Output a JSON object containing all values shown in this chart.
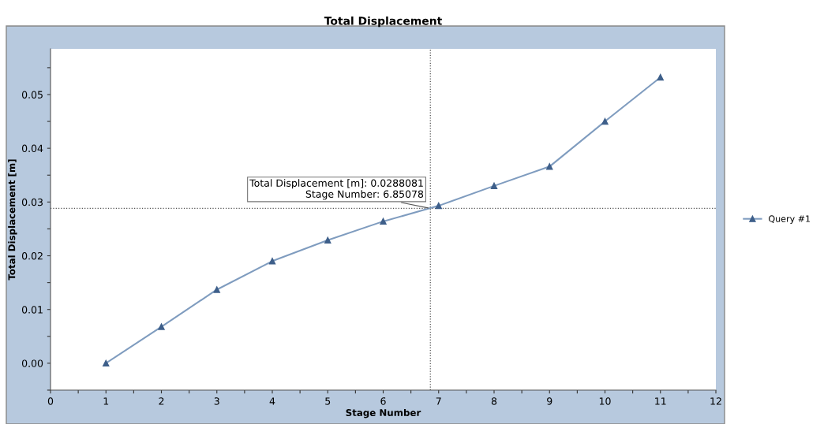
{
  "chart_data": {
    "type": "line",
    "title": "Total Displacement",
    "xlabel": "Stage Number",
    "ylabel": "Total Displacement [m]",
    "x": [
      1,
      2,
      3,
      4,
      5,
      6,
      7,
      8,
      9,
      10,
      11
    ],
    "series": [
      {
        "name": "Query #1",
        "color": "#7f9cbf",
        "values": [
          0.0,
          0.0068,
          0.0137,
          0.019,
          0.0229,
          0.0264,
          0.0293,
          0.033,
          0.0366,
          0.045,
          0.0532
        ]
      }
    ],
    "xlim": [
      0,
      12
    ],
    "xticks": [
      0,
      {
        "value": 0.5,
        "label": null
      },
      1,
      {
        "value": 1.5,
        "label": null
      },
      2,
      {
        "value": 2.5,
        "label": null
      },
      3,
      {
        "value": 3.5,
        "label": null
      },
      4,
      {
        "value": 4.5,
        "label": null
      },
      5,
      {
        "value": 5.5,
        "label": null
      },
      6,
      {
        "value": 6.5,
        "label": null
      },
      7,
      {
        "value": 7.5,
        "label": null
      },
      8,
      {
        "value": 8.5,
        "label": null
      },
      9,
      {
        "value": 9.5,
        "label": null
      },
      10,
      {
        "value": 10.5,
        "label": null
      },
      11,
      {
        "value": 11.5,
        "label": null
      },
      12
    ],
    "ylim": [
      -0.005,
      0.0585
    ],
    "yticks": [
      {
        "value": -0.005,
        "label": null
      },
      {
        "value": 0,
        "label": "0.00"
      },
      {
        "value": 0.005,
        "label": null
      },
      {
        "value": 0.01,
        "label": "0.01"
      },
      {
        "value": 0.015,
        "label": null
      },
      {
        "value": 0.02,
        "label": "0.02"
      },
      {
        "value": 0.025,
        "label": null
      },
      {
        "value": 0.03,
        "label": "0.03"
      },
      {
        "value": 0.035,
        "label": null
      },
      {
        "value": 0.04,
        "label": "0.04"
      },
      {
        "value": 0.045,
        "label": null
      },
      {
        "value": 0.05,
        "label": "0.05"
      },
      {
        "value": 0.055,
        "label": null
      }
    ],
    "ref_lines": [
      {
        "axis": "x",
        "value": 6.85078,
        "color": "#555555",
        "line_style": "dotted"
      },
      {
        "axis": "y",
        "value": 0.0288081,
        "color": "#555555",
        "line_style": "dotted"
      }
    ],
    "annotations": [
      {
        "text": "Total Displacement [m]: 0.0288081\nStage Number: 6.85078",
        "x": 6.85078,
        "y": 0.0288081
      }
    ],
    "grid": false,
    "legend": "right",
    "marker": "triangle",
    "line_style": "solid"
  }
}
